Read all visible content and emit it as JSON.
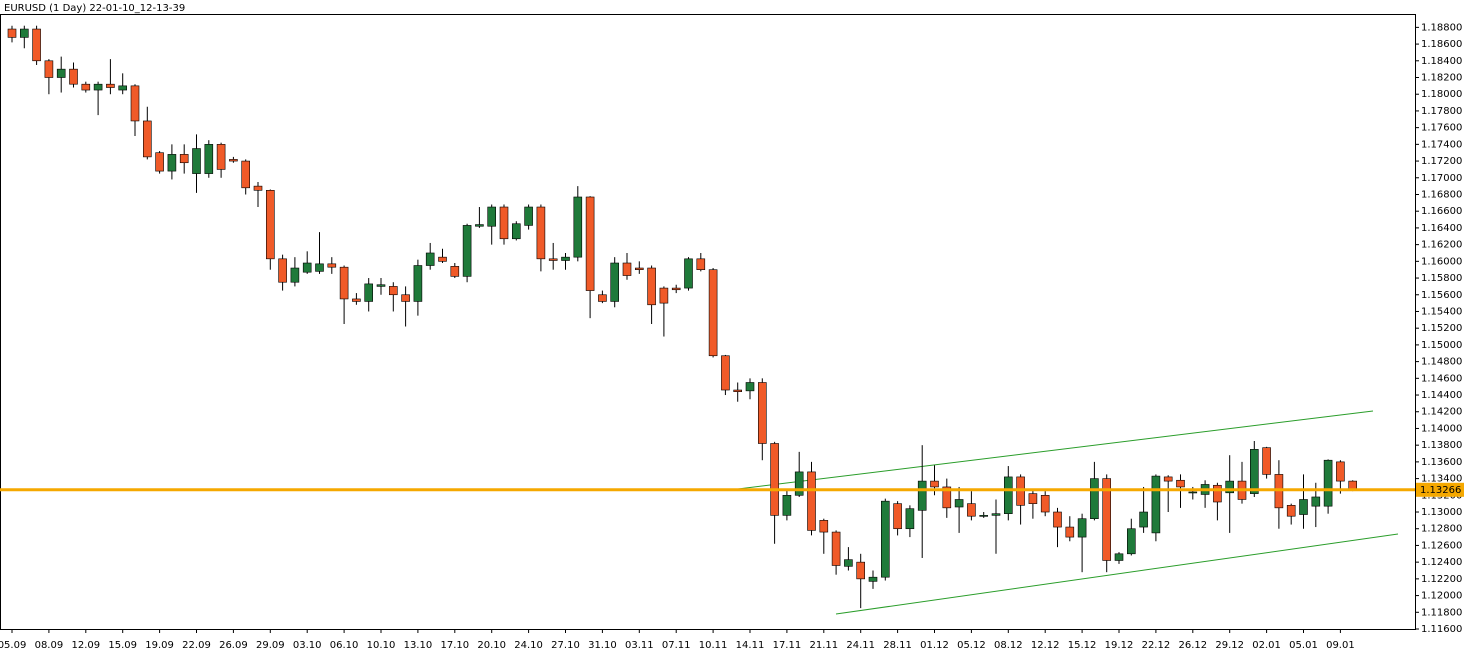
{
  "chart_data": {
    "type": "candlestick",
    "title": "EURUSD (1 Day) 22-01-10_12-13-39",
    "up_color": "#1f7a3a",
    "down_color": "#f05a28",
    "edge_color": "#000000",
    "line_color": "#f5a800",
    "categories": [
      "05.09",
      null,
      null,
      "08.09",
      null,
      null,
      "12.09",
      null,
      null,
      "15.09",
      null,
      null,
      "19.09",
      null,
      null,
      "22.09",
      null,
      null,
      "26.09",
      null,
      null,
      "29.09",
      null,
      null,
      "03.10",
      null,
      null,
      "06.10",
      null,
      null,
      "10.10",
      null,
      null,
      "13.10",
      null,
      null,
      "17.10",
      null,
      null,
      "20.10",
      null,
      null,
      "24.10",
      null,
      null,
      "27.10",
      null,
      null,
      "31.10",
      null,
      null,
      "03.11",
      null,
      null,
      "07.11",
      null,
      null,
      "10.11",
      null,
      null,
      "14.11",
      null,
      null,
      "17.11",
      null,
      null,
      "21.11",
      null,
      null,
      "24.11",
      null,
      null,
      "28.11",
      null,
      null,
      "01.12",
      null,
      null,
      "05.12",
      null,
      null,
      "08.12",
      null,
      null,
      "12.12",
      null,
      null,
      "15.12",
      null,
      null,
      "19.12",
      null,
      null,
      "22.12",
      null,
      null,
      "26.12",
      null,
      null,
      "29.12",
      null,
      null,
      "02.01",
      null,
      null,
      "05.01",
      null,
      null,
      "09.01",
      null
    ],
    "open": [
      1.1878,
      1.1868,
      1.1878,
      1.184,
      1.182,
      1.183,
      1.1812,
      1.1805,
      1.1812,
      1.1805,
      1.181,
      1.1768,
      1.173,
      1.1708,
      1.1728,
      1.1705,
      1.1705,
      1.174,
      1.1722,
      1.172,
      1.169,
      1.1685,
      1.1603,
      1.1575,
      1.1587,
      1.1588,
      1.1597,
      1.1593,
      1.1555,
      1.1552,
      1.157,
      1.157,
      1.156,
      1.1552,
      1.1595,
      1.1605,
      1.1594,
      1.1582,
      1.1642,
      1.1642,
      1.1665,
      1.1627,
      1.1643,
      1.1665,
      1.1603,
      1.1601,
      1.1605,
      1.1677,
      1.156,
      1.1552,
      1.1598,
      1.1592,
      1.1592,
      1.1568,
      1.1568,
      1.1568,
      1.1603,
      1.159,
      1.1487,
      1.1446,
      1.1445,
      1.1455,
      1.1382,
      1.1296,
      1.132,
      1.1348,
      1.129,
      1.1276,
      1.1235,
      1.124,
      1.1217,
      1.1222,
      1.131,
      1.128,
      1.1302,
      1.1337,
      1.133,
      1.1306,
      1.131,
      1.1295,
      1.1296,
      1.1298,
      1.1342,
      1.1322,
      1.132,
      1.13,
      1.1282,
      1.127,
      1.1292,
      1.134,
      1.1242,
      1.125,
      1.1282,
      1.1275,
      1.1342,
      1.1338,
      1.1323,
      1.1321,
      1.1332,
      1.1323,
      1.1337,
      1.1322,
      1.1377,
      1.1345,
      1.1308,
      1.1297,
      1.1307,
      1.1307,
      1.136,
      1.1337
    ],
    "high": [
      1.1882,
      1.1882,
      1.1882,
      1.1842,
      1.1845,
      1.1838,
      1.1815,
      1.1815,
      1.1842,
      1.1825,
      1.1812,
      1.1785,
      1.1732,
      1.174,
      1.174,
      1.1752,
      1.1745,
      1.1742,
      1.1725,
      1.1722,
      1.1695,
      1.1686,
      1.1608,
      1.1605,
      1.1612,
      1.1635,
      1.1605,
      1.1595,
      1.1562,
      1.158,
      1.158,
      1.1575,
      1.157,
      1.1602,
      1.1622,
      1.1615,
      1.1598,
      1.1645,
      1.1665,
      1.1668,
      1.1668,
      1.1648,
      1.1668,
      1.1668,
      1.1622,
      1.161,
      1.169,
      1.1678,
      1.1565,
      1.1605,
      1.161,
      1.16,
      1.1595,
      1.157,
      1.1572,
      1.1605,
      1.161,
      1.1592,
      1.1488,
      1.1455,
      1.146,
      1.146,
      1.1384,
      1.1328,
      1.1372,
      1.136,
      1.1292,
      1.1278,
      1.1258,
      1.125,
      1.123,
      1.1316,
      1.1313,
      1.1308,
      1.138,
      1.1356,
      1.134,
      1.133,
      1.1325,
      1.13,
      1.1315,
      1.1355,
      1.1345,
      1.1328,
      1.1325,
      1.1305,
      1.1295,
      1.1298,
      1.136,
      1.1345,
      1.1252,
      1.1292,
      1.133,
      1.1345,
      1.1344,
      1.1345,
      1.133,
      1.1338,
      1.1335,
      1.1368,
      1.136,
      1.1385,
      1.1378,
      1.1362,
      1.131,
      1.1345,
      1.1335,
      1.1363,
      1.1362,
      1.1338
    ],
    "low": [
      1.1862,
      1.1855,
      1.1835,
      1.18,
      1.1802,
      1.1808,
      1.1802,
      1.1775,
      1.18,
      1.18,
      1.175,
      1.1722,
      1.1705,
      1.1698,
      1.1705,
      1.1682,
      1.17,
      1.17,
      1.1718,
      1.168,
      1.1665,
      1.159,
      1.1565,
      1.157,
      1.1585,
      1.1585,
      1.1585,
      1.1525,
      1.1548,
      1.154,
      1.156,
      1.154,
      1.1522,
      1.1535,
      1.159,
      1.1598,
      1.158,
      1.1575,
      1.164,
      1.162,
      1.162,
      1.1625,
      1.1638,
      1.1588,
      1.159,
      1.159,
      1.16,
      1.1532,
      1.155,
      1.1545,
      1.1578,
      1.1585,
      1.1525,
      1.151,
      1.1562,
      1.1565,
      1.1588,
      1.1485,
      1.144,
      1.1432,
      1.1435,
      1.1362,
      1.1262,
      1.129,
      1.1318,
      1.1272,
      1.125,
      1.1225,
      1.123,
      1.1185,
      1.1208,
      1.1218,
      1.1272,
      1.127,
      1.1245,
      1.132,
      1.1293,
      1.1275,
      1.129,
      1.1293,
      1.125,
      1.129,
      1.1285,
      1.1292,
      1.1295,
      1.1258,
      1.1265,
      1.1228,
      1.129,
      1.1228,
      1.1238,
      1.1248,
      1.1275,
      1.1265,
      1.13,
      1.1305,
      1.1315,
      1.1305,
      1.129,
      1.1275,
      1.131,
      1.1318,
      1.134,
      1.128,
      1.1285,
      1.128,
      1.1282,
      1.1298,
      1.1322,
      1.1325
    ],
    "close": [
      1.1868,
      1.1878,
      1.184,
      1.182,
      1.183,
      1.1812,
      1.1805,
      1.1812,
      1.1808,
      1.181,
      1.1768,
      1.1725,
      1.1708,
      1.1728,
      1.1718,
      1.1735,
      1.174,
      1.171,
      1.172,
      1.1688,
      1.1685,
      1.1603,
      1.1575,
      1.1592,
      1.1598,
      1.1597,
      1.1593,
      1.1555,
      1.1552,
      1.1573,
      1.1572,
      1.156,
      1.1552,
      1.1595,
      1.161,
      1.16,
      1.1582,
      1.1643,
      1.1644,
      1.1665,
      1.1627,
      1.1645,
      1.1665,
      1.1603,
      1.1601,
      1.1605,
      1.1677,
      1.1565,
      1.1552,
      1.1598,
      1.1583,
      1.159,
      1.1548,
      1.155,
      1.1566,
      1.1603,
      1.159,
      1.1487,
      1.1446,
      1.1444,
      1.1455,
      1.1382,
      1.1296,
      1.132,
      1.1348,
      1.1278,
      1.1276,
      1.1236,
      1.1243,
      1.122,
      1.1222,
      1.1313,
      1.128,
      1.1304,
      1.1337,
      1.133,
      1.1305,
      1.1315,
      1.1295,
      1.1296,
      1.1298,
      1.1342,
      1.1308,
      1.131,
      1.13,
      1.1282,
      1.127,
      1.1292,
      1.134,
      1.1242,
      1.125,
      1.128,
      1.13,
      1.1343,
      1.1337,
      1.133,
      1.1324,
      1.1333,
      1.1312,
      1.1337,
      1.1315,
      1.1375,
      1.1345,
      1.1305,
      1.1295,
      1.1315,
      1.1318,
      1.1362,
      1.1337,
      1.13266
    ],
    "last_price": {
      "value": 1.13266,
      "label": "1.13266"
    },
    "ylim": [
      1.116,
      1.1896
    ],
    "yticks": [
      {
        "value": 1.188,
        "label": "1.18800"
      },
      {
        "value": 1.186,
        "label": "1.18600"
      },
      {
        "value": 1.184,
        "label": "1.18400"
      },
      {
        "value": 1.182,
        "label": "1.18200"
      },
      {
        "value": 1.18,
        "label": "1.18000"
      },
      {
        "value": 1.178,
        "label": "1.17800"
      },
      {
        "value": 1.176,
        "label": "1.17600"
      },
      {
        "value": 1.174,
        "label": "1.17400"
      },
      {
        "value": 1.172,
        "label": "1.17200"
      },
      {
        "value": 1.17,
        "label": "1.17000"
      },
      {
        "value": 1.168,
        "label": "1.16800"
      },
      {
        "value": 1.166,
        "label": "1.16600"
      },
      {
        "value": 1.164,
        "label": "1.16400"
      },
      {
        "value": 1.162,
        "label": "1.16200"
      },
      {
        "value": 1.16,
        "label": "1.16000"
      },
      {
        "value": 1.158,
        "label": "1.15800"
      },
      {
        "value": 1.156,
        "label": "1.15600"
      },
      {
        "value": 1.154,
        "label": "1.15400"
      },
      {
        "value": 1.152,
        "label": "1.15200"
      },
      {
        "value": 1.15,
        "label": "1.15000"
      },
      {
        "value": 1.148,
        "label": "1.14800"
      },
      {
        "value": 1.146,
        "label": "1.14600"
      },
      {
        "value": 1.144,
        "label": "1.14400"
      },
      {
        "value": 1.142,
        "label": "1.14200"
      },
      {
        "value": 1.14,
        "label": "1.14000"
      },
      {
        "value": 1.138,
        "label": "1.13800"
      },
      {
        "value": 1.136,
        "label": "1.13600"
      },
      {
        "value": 1.134,
        "label": "1.13400"
      },
      {
        "value": 1.132,
        "label": "1.13200"
      },
      {
        "value": 1.13,
        "label": "1.13000"
      },
      {
        "value": 1.128,
        "label": "1.12800"
      },
      {
        "value": 1.126,
        "label": "1.12600"
      },
      {
        "value": 1.124,
        "label": "1.12400"
      },
      {
        "value": 1.122,
        "label": "1.12200"
      },
      {
        "value": 1.12,
        "label": "1.12000"
      },
      {
        "value": 1.118,
        "label": "1.11800"
      },
      {
        "value": 1.116,
        "label": "1.11600"
      }
    ]
  }
}
